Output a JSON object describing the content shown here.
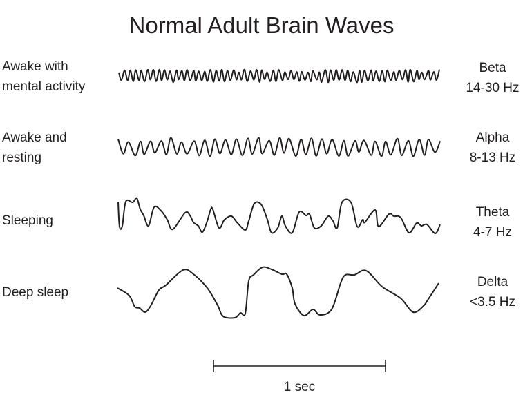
{
  "title": "Normal Adult Brain Waves",
  "rows": [
    {
      "state": [
        "Awake with",
        "mental activity"
      ],
      "wave": "Beta",
      "frequency": "14-30 Hz"
    },
    {
      "state": [
        "Awake and",
        "resting"
      ],
      "wave": "Alpha",
      "frequency": "8-13 Hz"
    },
    {
      "state": [
        "Sleeping"
      ],
      "wave": "Theta",
      "frequency": "4-7 Hz"
    },
    {
      "state": [
        "Deep sleep"
      ],
      "wave": "Delta",
      "frequency": "<3.5 Hz"
    }
  ],
  "scale_bar": {
    "label": "1 sec"
  },
  "colors": {
    "ink": "#231f20"
  }
}
